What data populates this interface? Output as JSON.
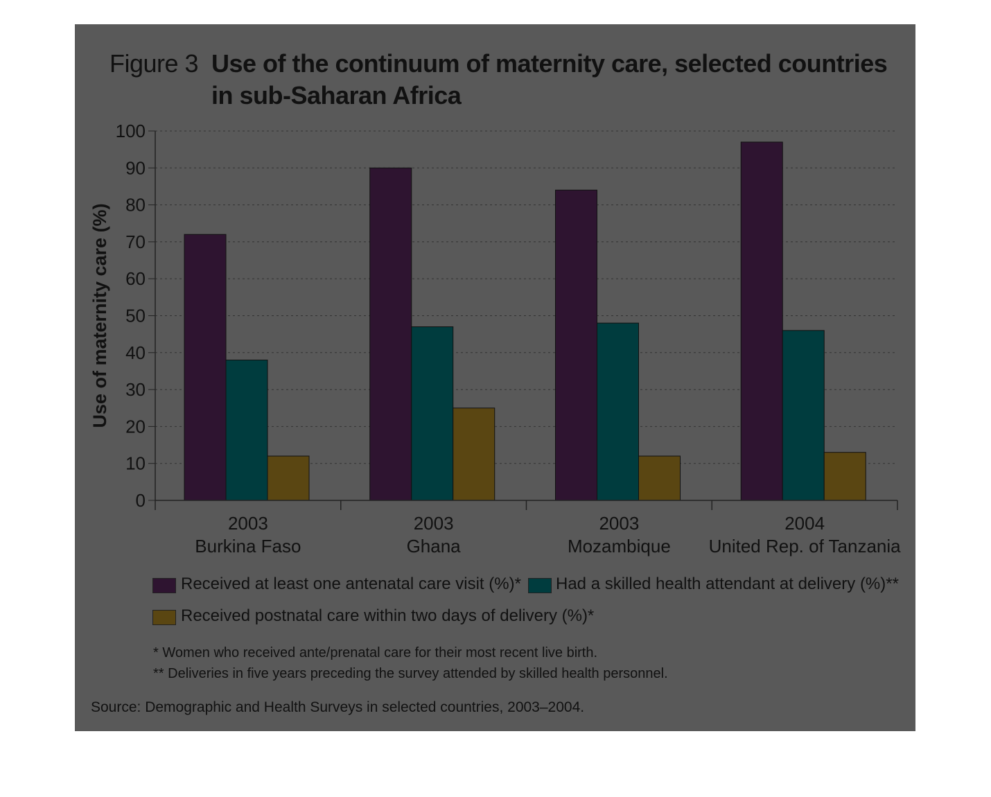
{
  "figure": {
    "prefix": "Figure 3",
    "title": "Use of the continuum of maternity care, selected countries in sub-Saharan Africa"
  },
  "colors": {
    "panel": "#595959",
    "antenatal": "#2e1430",
    "skilled": "#003c3e",
    "postnatal": "#5a4612",
    "text": "#111111"
  },
  "chart_data": {
    "type": "bar",
    "ylabel": "Use of maternity care (%)",
    "xlabel": "",
    "ylim": [
      0,
      100
    ],
    "yticks": [
      "0",
      "10",
      "20",
      "30",
      "40",
      "50",
      "60",
      "70",
      "80",
      "90",
      "100"
    ],
    "grid": true,
    "categories": [
      {
        "year": "2003",
        "country": "Burkina Faso"
      },
      {
        "year": "2003",
        "country": "Ghana"
      },
      {
        "year": "2003",
        "country": "Mozambique"
      },
      {
        "year": "2004",
        "country": "United Rep. of Tanzania"
      }
    ],
    "series": [
      {
        "name": "Received at least one antenatal care visit (%)*",
        "color": "#2e1430",
        "values": [
          72,
          90,
          84,
          97
        ]
      },
      {
        "name": "Had a skilled health attendant at delivery (%)**",
        "color": "#003c3e",
        "values": [
          38,
          47,
          48,
          46
        ]
      },
      {
        "name": "Received postnatal care within two days of delivery (%)*",
        "color": "#5a4612",
        "values": [
          12,
          25,
          12,
          13
        ]
      }
    ],
    "legend_position": "bottom"
  },
  "notes": [
    "* Women who received ante/prenatal care for their most recent live birth.",
    "** Deliveries in five years preceding the survey attended by skilled health personnel."
  ],
  "source": "Source: Demographic and Health Surveys in selected countries, 2003–2004."
}
